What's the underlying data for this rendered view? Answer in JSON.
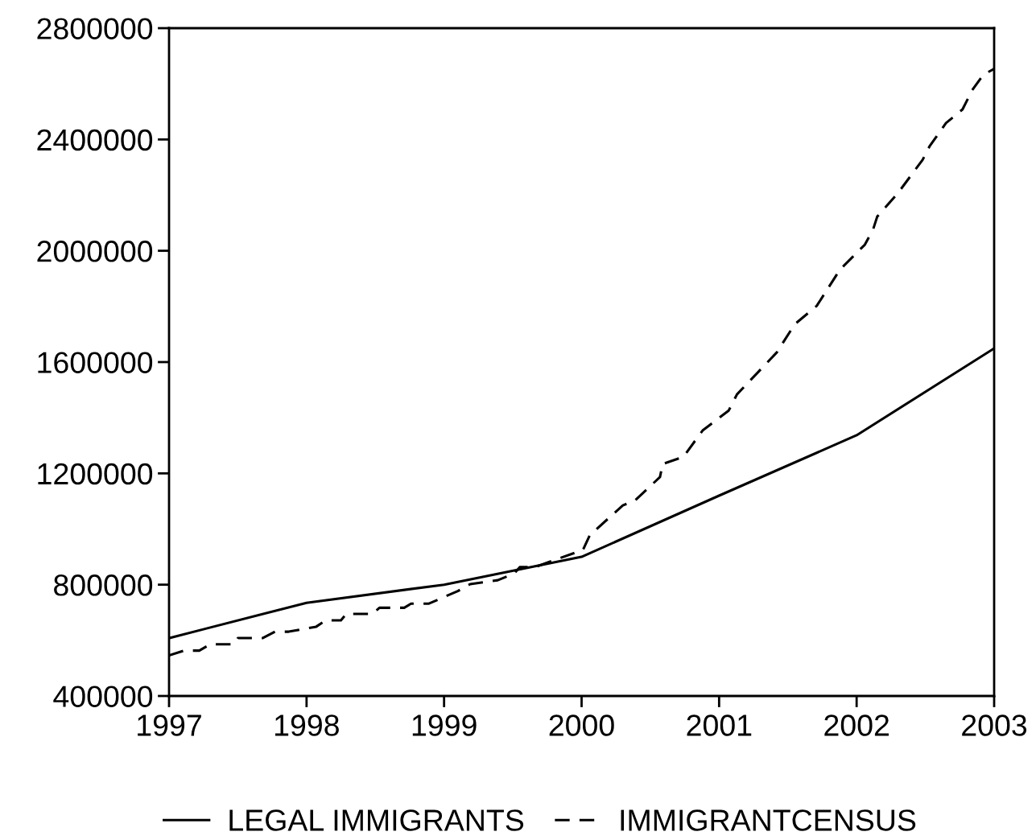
{
  "chart_data": {
    "type": "line",
    "xlim": [
      1997,
      2003
    ],
    "xticks": [
      1997,
      1998,
      1999,
      2000,
      2001,
      2002,
      2003
    ],
    "ylim": [
      400000,
      2800000
    ],
    "yticks": [
      400000,
      800000,
      1200000,
      1600000,
      2000000,
      2400000,
      2800000
    ],
    "grid": false,
    "legend": "bottom",
    "series": [
      {
        "name": "LEGAL IMMIGRANTS",
        "color": "#000000",
        "line_style": "solid",
        "x": [
          1997,
          1998,
          1999,
          2000,
          2001,
          2002,
          2003
        ],
        "values": [
          608000,
          735000,
          800000,
          900000,
          1120000,
          1337000,
          1649000
        ]
      },
      {
        "name": "IMMIGRANTCENSUS",
        "color": "#000000",
        "line_style": "dashed",
        "x": [
          1997.0,
          1997.11,
          1997.22,
          1997.3,
          1997.47,
          1997.5,
          1997.68,
          1997.77,
          1997.87,
          1998.07,
          1998.14,
          1998.25,
          1998.29,
          1998.48,
          1998.53,
          1998.71,
          1998.76,
          1998.89,
          1999.1,
          1999.19,
          1999.39,
          1999.51,
          1999.55,
          1999.66,
          2000.01,
          2000.06,
          2000.3,
          2000.39,
          2000.57,
          2000.59,
          2000.74,
          2000.88,
          2001.07,
          2001.13,
          2001.42,
          2001.55,
          2001.71,
          2001.88,
          2002.06,
          2002.12,
          2002.15,
          2002.3,
          2002.48,
          2002.53,
          2002.65,
          2002.77,
          2002.84,
          2002.92,
          2003.0
        ],
        "values": [
          546000,
          563000,
          563000,
          586000,
          586000,
          608000,
          608000,
          631000,
          631000,
          649000,
          672000,
          672000,
          695000,
          695000,
          717000,
          717000,
          732000,
          732000,
          777000,
          802000,
          816000,
          840000,
          863000,
          863000,
          925000,
          978000,
          1085000,
          1103000,
          1187000,
          1234000,
          1259000,
          1354000,
          1426000,
          1484000,
          1635000,
          1736000,
          1802000,
          1933000,
          2022000,
          2077000,
          2123000,
          2207000,
          2327000,
          2375000,
          2459000,
          2508000,
          2577000,
          2632000,
          2654000
        ]
      }
    ]
  }
}
